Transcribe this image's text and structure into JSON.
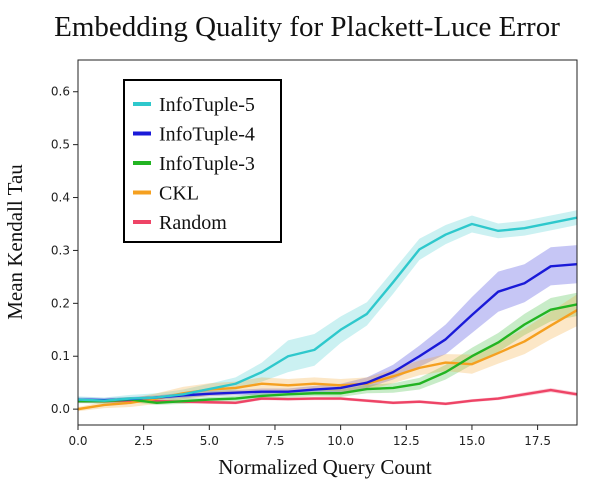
{
  "chart_data": {
    "type": "line",
    "title": "Embedding Quality for Plackett-Luce Error",
    "xlabel": "Normalized Query Count",
    "ylabel": "Mean Kendall Tau",
    "xlim": [
      0,
      19
    ],
    "ylim": [
      -0.03,
      0.66
    ],
    "xticks": [
      0.0,
      2.5,
      5.0,
      7.5,
      10.0,
      12.5,
      15.0,
      17.5
    ],
    "xtick_labels": [
      "0.0",
      "2.5",
      "5.0",
      "7.5",
      "10.0",
      "12.5",
      "15.0",
      "17.5"
    ],
    "yticks": [
      0.0,
      0.1,
      0.2,
      0.3,
      0.4,
      0.5,
      0.6
    ],
    "ytick_labels": [
      "0.0",
      "0.1",
      "0.2",
      "0.3",
      "0.4",
      "0.5",
      "0.6"
    ],
    "grid": false,
    "legend_position": "upper-left",
    "x": [
      0,
      1,
      2,
      3,
      4,
      5,
      6,
      7,
      8,
      9,
      10,
      11,
      12,
      13,
      14,
      15,
      16,
      17,
      18,
      19
    ],
    "series": [
      {
        "name": "InfoTuple-5",
        "color": "#2ec8cc",
        "values": [
          0.018,
          0.016,
          0.02,
          0.022,
          0.028,
          0.038,
          0.048,
          0.07,
          0.1,
          0.112,
          0.15,
          0.18,
          0.24,
          0.302,
          0.33,
          0.35,
          0.337,
          0.342,
          0.352,
          0.362
        ],
        "band": [
          0.006,
          0.006,
          0.007,
          0.008,
          0.009,
          0.01,
          0.012,
          0.018,
          0.03,
          0.03,
          0.025,
          0.022,
          0.022,
          0.02,
          0.018,
          0.016,
          0.014,
          0.014,
          0.014,
          0.014
        ]
      },
      {
        "name": "InfoTuple-4",
        "color": "#1a1ad8",
        "values": [
          0.018,
          0.017,
          0.019,
          0.022,
          0.026,
          0.029,
          0.031,
          0.033,
          0.033,
          0.037,
          0.04,
          0.05,
          0.07,
          0.1,
          0.132,
          0.178,
          0.222,
          0.238,
          0.27,
          0.274
        ],
        "band": [
          0.004,
          0.004,
          0.004,
          0.004,
          0.005,
          0.005,
          0.005,
          0.006,
          0.006,
          0.007,
          0.008,
          0.01,
          0.014,
          0.02,
          0.028,
          0.034,
          0.038,
          0.036,
          0.036,
          0.036
        ]
      },
      {
        "name": "InfoTuple-3",
        "color": "#22b422",
        "values": [
          0.015,
          0.015,
          0.018,
          0.012,
          0.015,
          0.018,
          0.02,
          0.025,
          0.028,
          0.03,
          0.03,
          0.038,
          0.04,
          0.048,
          0.07,
          0.1,
          0.126,
          0.16,
          0.188,
          0.198
        ],
        "band": [
          0.004,
          0.004,
          0.005,
          0.004,
          0.005,
          0.005,
          0.005,
          0.006,
          0.006,
          0.006,
          0.007,
          0.008,
          0.009,
          0.011,
          0.014,
          0.016,
          0.018,
          0.02,
          0.022,
          0.022
        ]
      },
      {
        "name": "CKL",
        "color": "#f5a020",
        "values": [
          0.0,
          0.008,
          0.012,
          0.02,
          0.03,
          0.037,
          0.04,
          0.048,
          0.045,
          0.048,
          0.045,
          0.048,
          0.062,
          0.078,
          0.088,
          0.085,
          0.106,
          0.128,
          0.158,
          0.187
        ],
        "band": [
          0.004,
          0.006,
          0.008,
          0.01,
          0.012,
          0.012,
          0.012,
          0.012,
          0.012,
          0.012,
          0.012,
          0.012,
          0.013,
          0.014,
          0.016,
          0.018,
          0.02,
          0.024,
          0.026,
          0.03
        ]
      },
      {
        "name": "Random",
        "color": "#ee4466",
        "values": [
          0.015,
          0.015,
          0.016,
          0.015,
          0.014,
          0.013,
          0.012,
          0.02,
          0.019,
          0.02,
          0.02,
          0.016,
          0.012,
          0.014,
          0.01,
          0.016,
          0.02,
          0.028,
          0.036,
          0.028
        ],
        "band": [
          0.003,
          0.003,
          0.003,
          0.003,
          0.003,
          0.003,
          0.003,
          0.003,
          0.003,
          0.003,
          0.003,
          0.003,
          0.003,
          0.003,
          0.003,
          0.003,
          0.003,
          0.004,
          0.004,
          0.004
        ]
      }
    ]
  }
}
